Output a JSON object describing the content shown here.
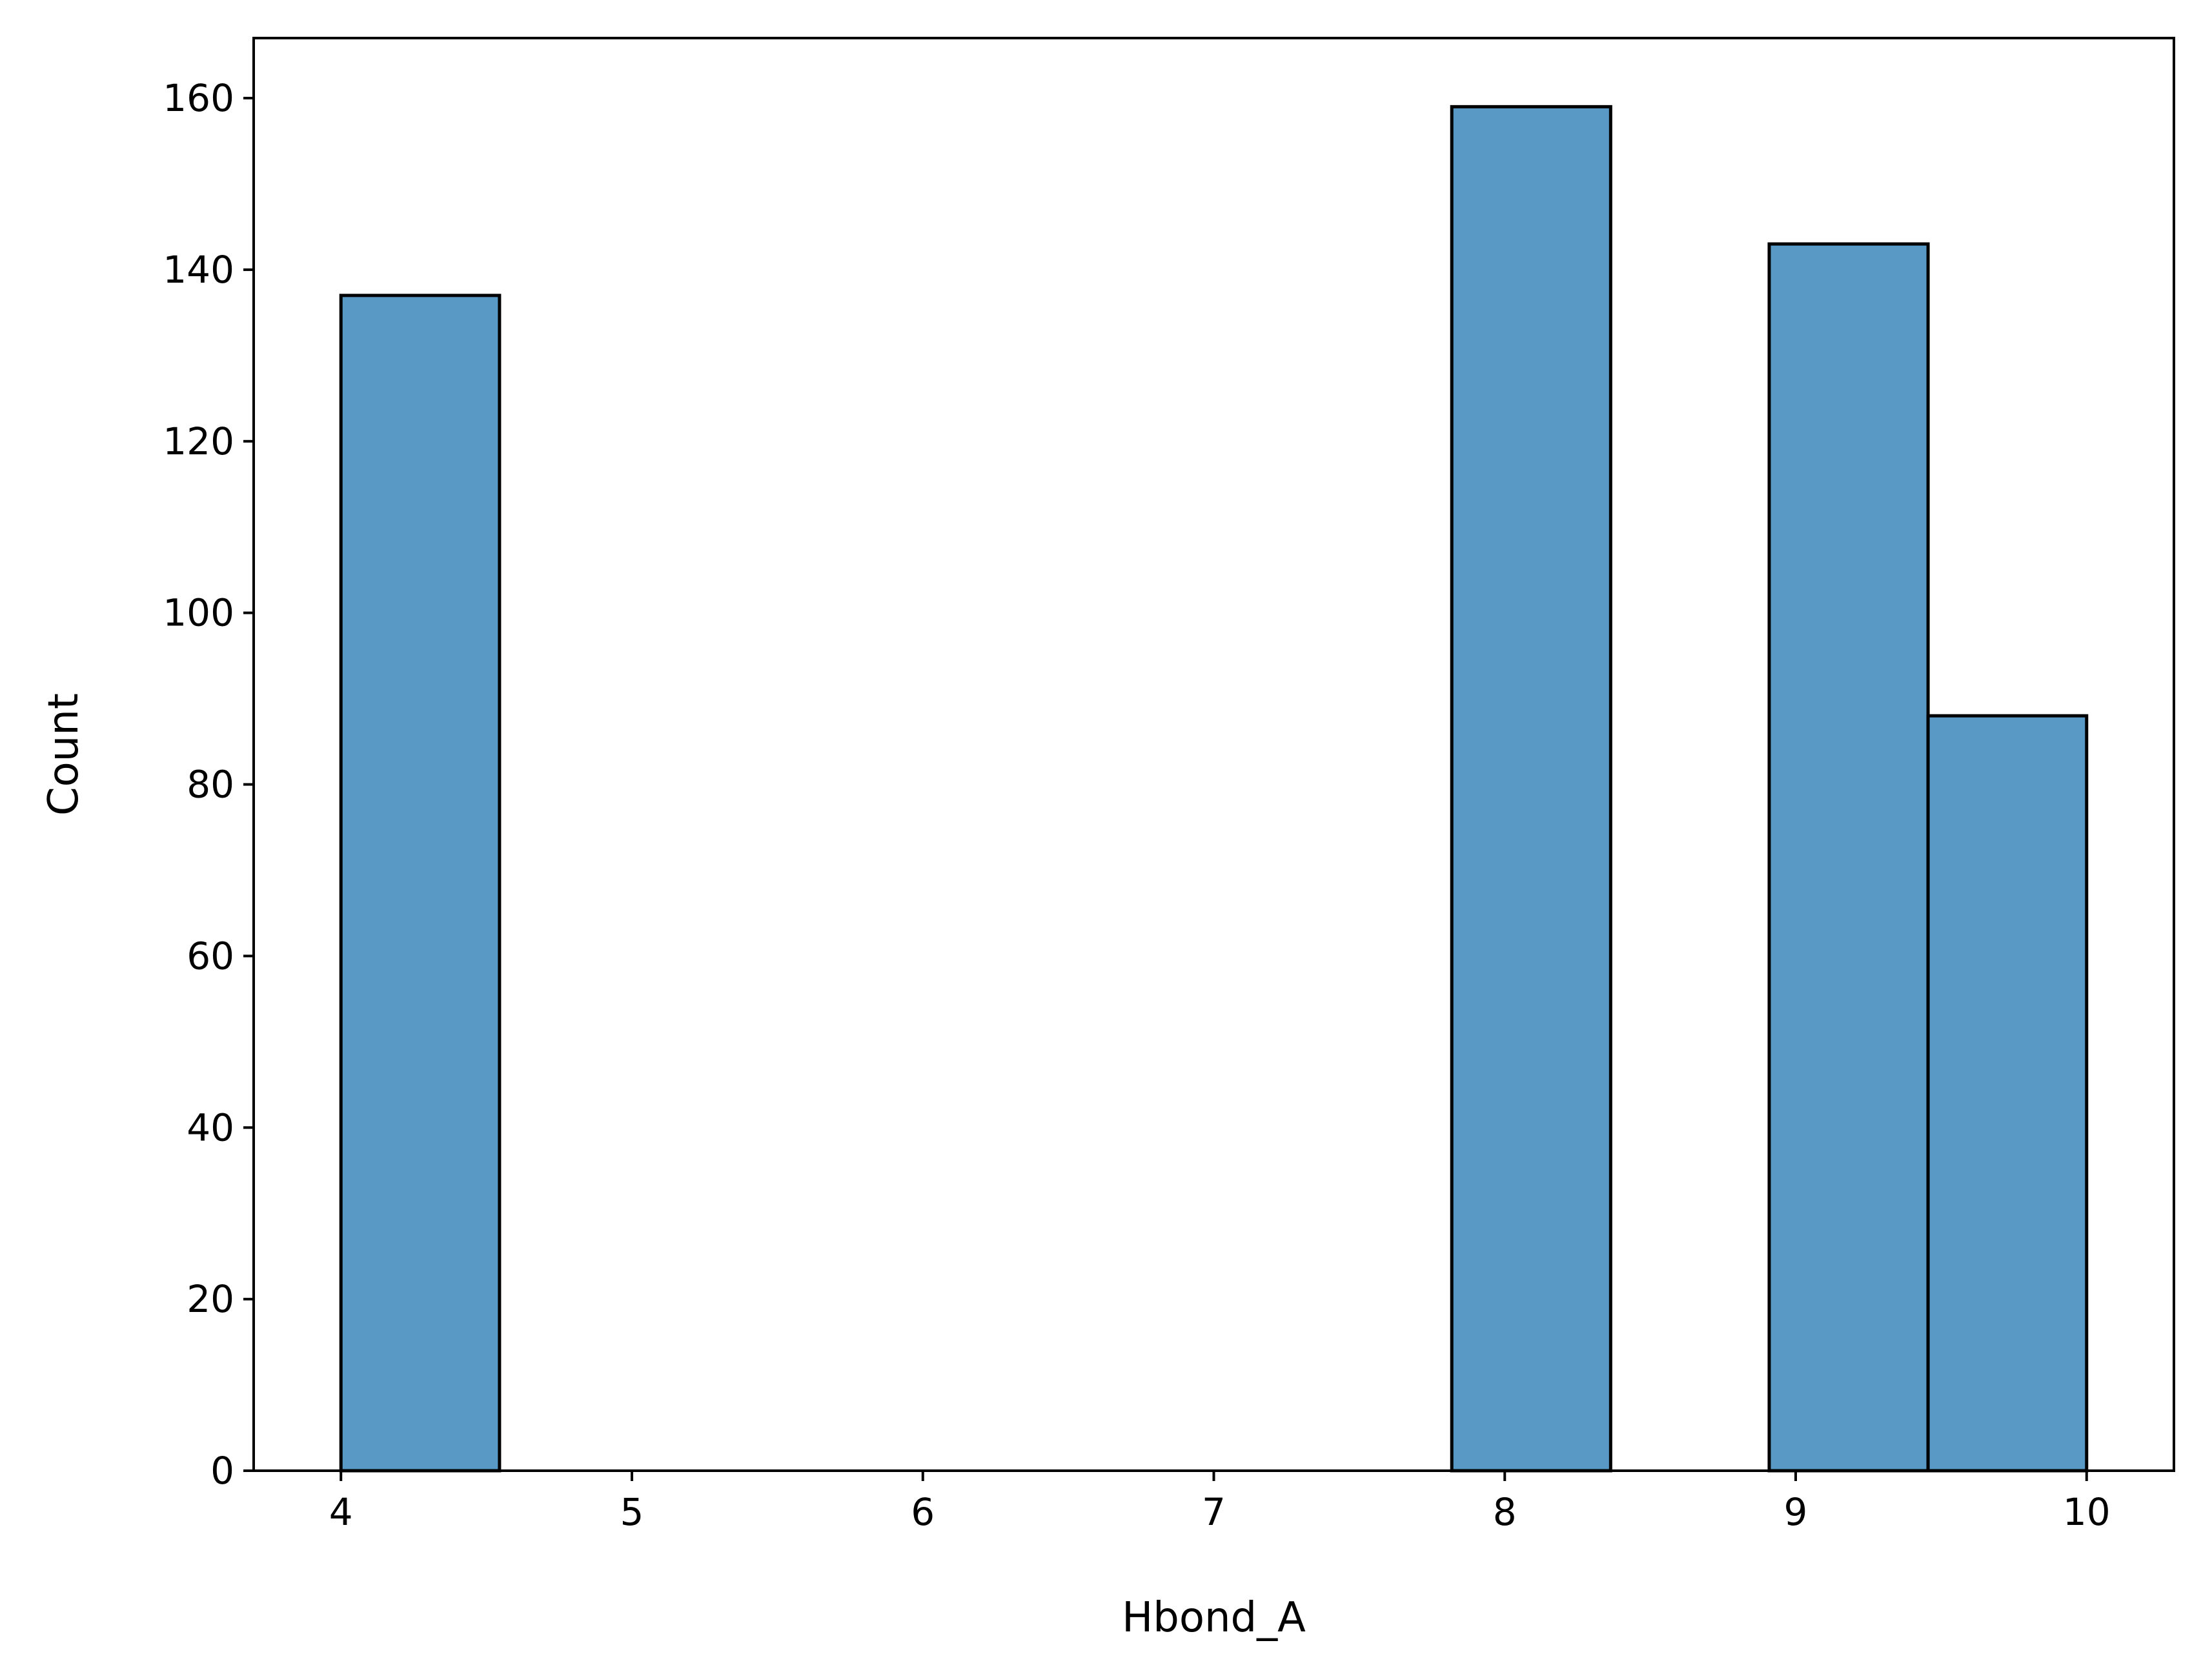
{
  "chart_data": {
    "type": "bar",
    "xlabel": "Hbond_A",
    "ylabel": "Count",
    "xlim": [
      3.7,
      10.3
    ],
    "ylim": [
      0,
      167
    ],
    "x_ticks": [
      4,
      5,
      6,
      7,
      8,
      9,
      10
    ],
    "y_ticks": [
      0,
      20,
      40,
      60,
      80,
      100,
      120,
      140,
      160
    ],
    "bins": [
      {
        "x0": 4.0,
        "x1": 4.545,
        "value": 137
      },
      {
        "x0": 4.545,
        "x1": 5.091,
        "value": 0
      },
      {
        "x0": 5.091,
        "x1": 5.636,
        "value": 0
      },
      {
        "x0": 5.636,
        "x1": 6.182,
        "value": 0
      },
      {
        "x0": 6.182,
        "x1": 6.727,
        "value": 0
      },
      {
        "x0": 6.727,
        "x1": 7.273,
        "value": 0
      },
      {
        "x0": 7.273,
        "x1": 7.818,
        "value": 0
      },
      {
        "x0": 7.818,
        "x1": 8.364,
        "value": 159
      },
      {
        "x0": 8.364,
        "x1": 8.909,
        "value": 0
      },
      {
        "x0": 8.909,
        "x1": 9.455,
        "value": 143
      },
      {
        "x0": 9.455,
        "x1": 10.0,
        "value": 88
      }
    ],
    "bar_color": "#5899c6",
    "edge_color": "#000000",
    "grid": false,
    "legend": false
  }
}
